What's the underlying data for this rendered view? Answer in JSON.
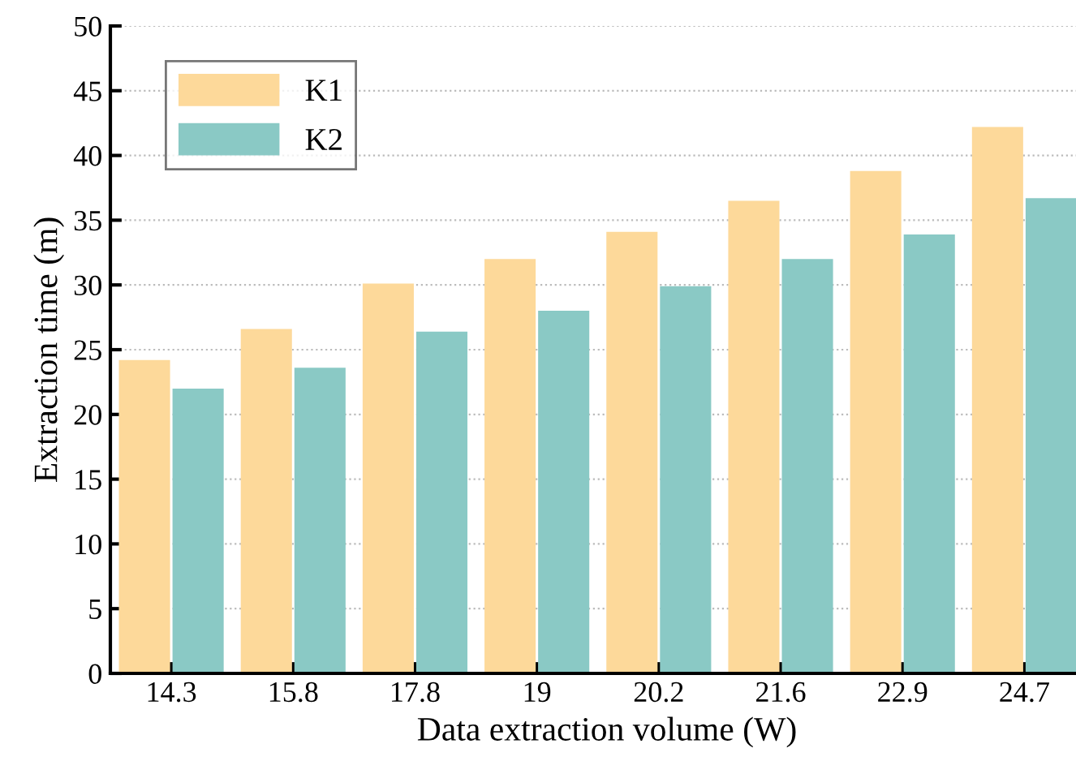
{
  "chart_data": {
    "type": "bar",
    "xlabel": "Data extraction volume (W)",
    "ylabel": "Extraction time (m)",
    "categories": [
      "14.3",
      "15.8",
      "17.8",
      "19",
      "20.2",
      "21.6",
      "22.9",
      "24.7"
    ],
    "series": [
      {
        "name": "K1",
        "color": "#fdd99a",
        "values": [
          24.2,
          26.6,
          30.1,
          32,
          34.1,
          36.5,
          38.8,
          42.2
        ]
      },
      {
        "name": "K2",
        "color": "#8ac9c5",
        "values": [
          22,
          23.6,
          26.4,
          28,
          29.9,
          32,
          33.9,
          36.7
        ]
      }
    ],
    "ylim": [
      0,
      50
    ],
    "yticks": [
      0,
      5,
      10,
      15,
      20,
      25,
      30,
      35,
      40,
      45,
      50
    ],
    "grid": "y",
    "legend": "top left"
  }
}
